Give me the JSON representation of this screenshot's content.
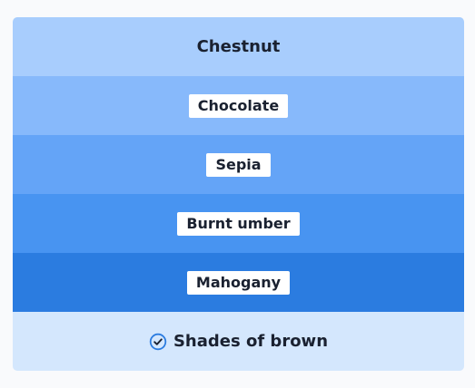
{
  "colors": {
    "page_bg": "#f9fafc",
    "band_1": "#a8cdfd",
    "band_2": "#87b9fb",
    "band_3": "#64a4f7",
    "band_4": "#4894f1",
    "band_5": "#2b7ce0",
    "footer": "#d4e7fd",
    "icon_stroke": "#2b7ce0"
  },
  "palette": {
    "items": [
      {
        "label": "Chestnut",
        "style": "plain"
      },
      {
        "label": "Chocolate",
        "style": "chip"
      },
      {
        "label": "Sepia",
        "style": "chip"
      },
      {
        "label": "Burnt umber",
        "style": "chip"
      },
      {
        "label": "Mahogany",
        "style": "chip"
      }
    ],
    "footer": {
      "icon": "check-circle-icon",
      "label": "Shades of brown"
    }
  }
}
